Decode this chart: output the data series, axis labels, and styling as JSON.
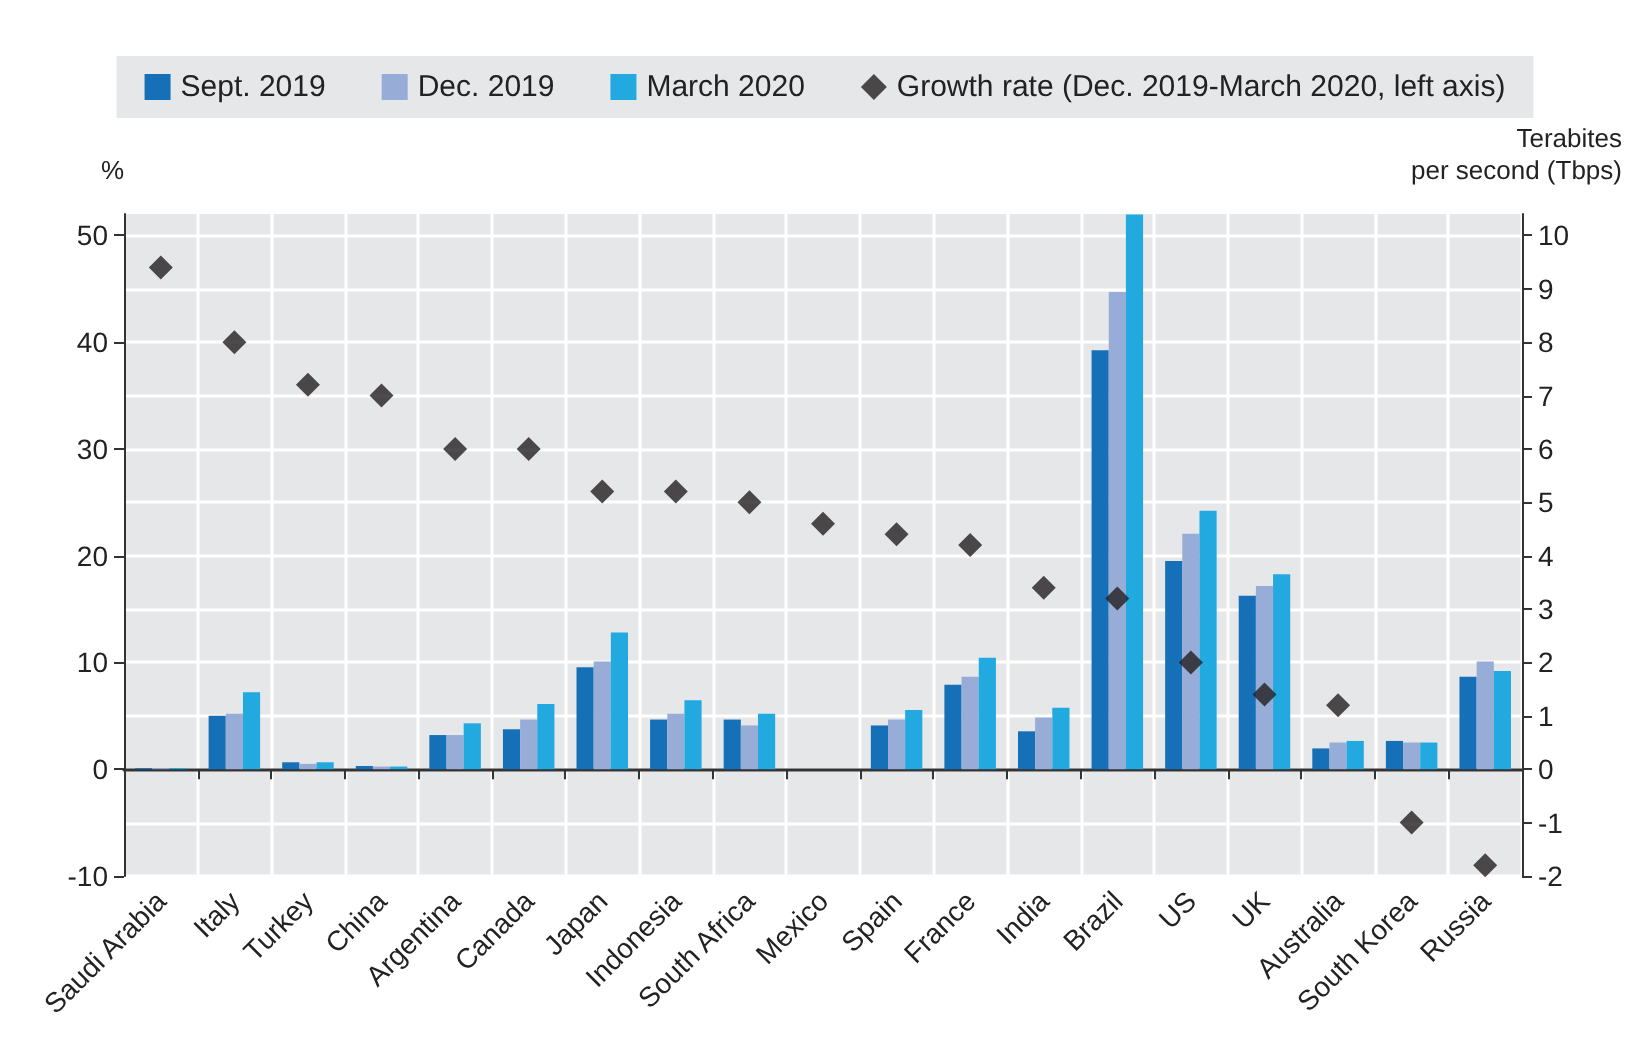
{
  "chart_data": {
    "type": "bar",
    "ylabel": "%",
    "y2label": "Terabites\nper second (Tbps)",
    "categories": [
      "Saudi Arabia",
      "Italy",
      "Turkey",
      "China",
      "Argentina",
      "Canada",
      "Japan",
      "Indonesia",
      "South Africa",
      "Mexico",
      "Spain",
      "France",
      "India",
      "Brazil",
      "US",
      "UK",
      "Australia",
      "South Korea",
      "Russia"
    ],
    "series": [
      {
        "name": "Sept. 2019",
        "color": "#1570b8",
        "axis": "y2",
        "values": [
          0.02,
          1.0,
          0.13,
          0.06,
          0.64,
          0.75,
          1.91,
          0.93,
          0.93,
          null,
          0.82,
          1.58,
          0.71,
          7.85,
          3.9,
          3.25,
          0.39,
          0.53,
          1.73
        ]
      },
      {
        "name": "Dec. 2019",
        "color": "#97acd6",
        "axis": "y2",
        "values": [
          0.02,
          1.04,
          0.1,
          0.05,
          0.64,
          0.93,
          2.02,
          1.04,
          0.82,
          null,
          0.93,
          1.73,
          0.97,
          8.94,
          4.41,
          3.43,
          0.5,
          0.5,
          2.02
        ]
      },
      {
        "name": "March 2020",
        "color": "#22a9e0",
        "axis": "y2",
        "values": [
          0.02,
          1.44,
          0.13,
          0.05,
          0.86,
          1.22,
          2.56,
          1.29,
          1.04,
          null,
          1.11,
          2.09,
          1.15,
          10.39,
          4.84,
          3.65,
          0.53,
          0.5,
          1.84
        ]
      },
      {
        "name": "Growth rate (Dec. 2019-March 2020, left axis)",
        "type": "scatter",
        "color": "#231f20",
        "axis": "y",
        "values": [
          47,
          40,
          36,
          35,
          30,
          30,
          26,
          26,
          25,
          23,
          22,
          21,
          17,
          16,
          10,
          7,
          6,
          -5,
          -9
        ]
      }
    ],
    "ylim": [
      -10,
      52
    ],
    "yticks": [
      -10,
      0,
      10,
      20,
      30,
      40,
      50
    ],
    "y2lim": [
      -2,
      10.4
    ],
    "y2ticks": [
      -2,
      -1,
      0,
      1,
      2,
      3,
      4,
      5,
      6,
      7,
      8,
      9,
      10
    ],
    "grid": true,
    "legend": "top",
    "marker": "diamond"
  }
}
